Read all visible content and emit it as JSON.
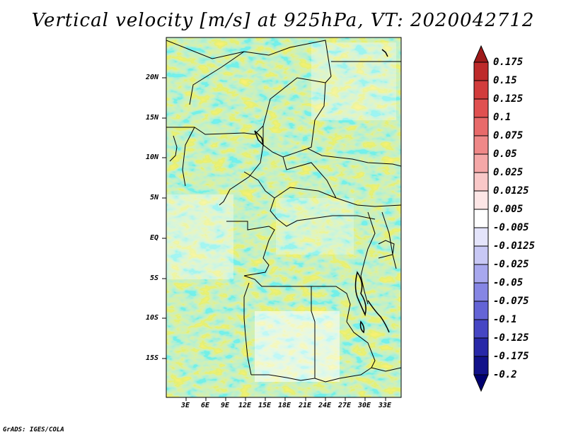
{
  "title": "Vertical velocity [m/s] at 925hPa, VT: 2020042712",
  "footer": "GrADS: IGES/COLA",
  "lat_ticks": [
    "20N",
    "15N",
    "10N",
    "5N",
    "EQ",
    "5S",
    "10S",
    "15S"
  ],
  "lon_ticks": [
    "3E",
    "6E",
    "9E",
    "12E",
    "15E",
    "18E",
    "21E",
    "24E",
    "27E",
    "30E",
    "33E"
  ],
  "colorbar": {
    "labels": [
      "0.175",
      "0.15",
      "0.125",
      "0.1",
      "0.075",
      "0.05",
      "0.025",
      "0.0125",
      "0.005",
      "-0.005",
      "-0.0125",
      "-0.025",
      "-0.05",
      "-0.075",
      "-0.1",
      "-0.125",
      "-0.175",
      "-0.2"
    ],
    "colors": [
      "#9e1a1a",
      "#be2a2a",
      "#d23c3c",
      "#e05050",
      "#e86a6a",
      "#ef8888",
      "#f5a8a8",
      "#f9c8c8",
      "#fde6e6",
      "#ffffff",
      "#e4e4fb",
      "#c8c8f5",
      "#a8a8ee",
      "#8686e4",
      "#6464d6",
      "#4646c4",
      "#2828a8",
      "#12128a",
      "#000070"
    ]
  },
  "legend_colors": {
    "positive": "#e05050",
    "negative": "#6464d6"
  }
}
